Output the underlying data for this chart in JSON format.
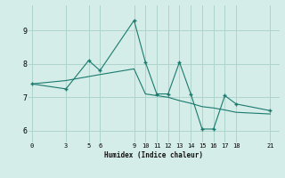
{
  "xlabel": "Humidex (Indice chaleur)",
  "bg_color": "#d4ede8",
  "grid_color": "#aed4cc",
  "line_color": "#1a7a6e",
  "line1_x": [
    0,
    3,
    5,
    6,
    9,
    10,
    11,
    12,
    13,
    14,
    15,
    16,
    17,
    18,
    21
  ],
  "line1_y": [
    7.4,
    7.25,
    8.1,
    7.8,
    9.3,
    8.05,
    7.1,
    7.1,
    8.05,
    7.1,
    6.05,
    6.05,
    7.05,
    6.8,
    6.6
  ],
  "line2_x": [
    0,
    3,
    5,
    6,
    9,
    10,
    11,
    12,
    13,
    14,
    15,
    16,
    17,
    18,
    21
  ],
  "line2_y": [
    7.4,
    7.5,
    7.62,
    7.68,
    7.85,
    7.1,
    7.05,
    7.0,
    6.9,
    6.82,
    6.72,
    6.68,
    6.62,
    6.55,
    6.5
  ],
  "xticks": [
    0,
    3,
    5,
    6,
    9,
    10,
    11,
    12,
    13,
    14,
    15,
    16,
    17,
    18,
    21
  ],
  "yticks": [
    6,
    7,
    8,
    9
  ],
  "xlim": [
    -0.3,
    21.8
  ],
  "ylim": [
    5.65,
    9.75
  ]
}
